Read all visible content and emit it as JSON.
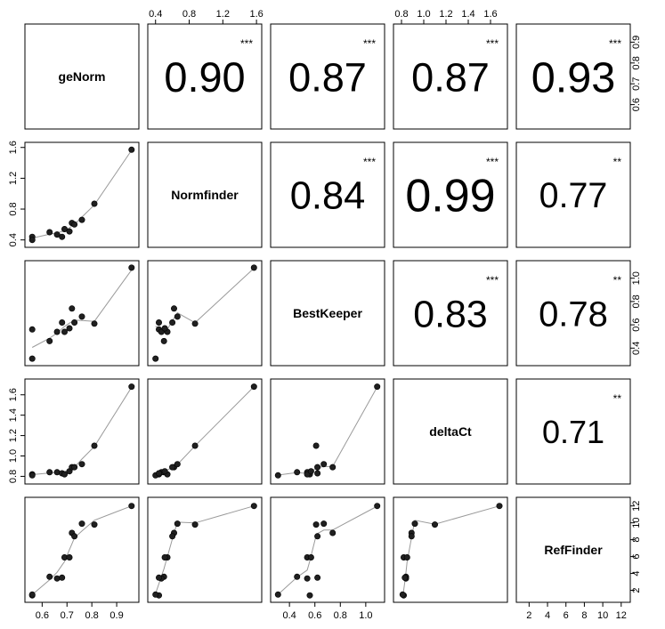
{
  "chart_data": {
    "type": "scatter",
    "variables": [
      "geNorm",
      "Normfinder",
      "BestKeeper",
      "deltaCt",
      "RefFinder"
    ],
    "lower_panels": "scatter with lowess smoother",
    "upper_panels": "correlation coefficient with significance stars",
    "correlations": [
      {
        "row": 0,
        "col": 1,
        "value": "0.90",
        "sig": "***"
      },
      {
        "row": 0,
        "col": 2,
        "value": "0.87",
        "sig": "***"
      },
      {
        "row": 0,
        "col": 3,
        "value": "0.87",
        "sig": "***"
      },
      {
        "row": 0,
        "col": 4,
        "value": "0.93",
        "sig": "***"
      },
      {
        "row": 1,
        "col": 2,
        "value": "0.84",
        "sig": "***"
      },
      {
        "row": 1,
        "col": 3,
        "value": "0.99",
        "sig": "***"
      },
      {
        "row": 1,
        "col": 4,
        "value": "0.77",
        "sig": "**"
      },
      {
        "row": 2,
        "col": 3,
        "value": "0.83",
        "sig": "***"
      },
      {
        "row": 2,
        "col": 4,
        "value": "0.78",
        "sig": "**"
      },
      {
        "row": 3,
        "col": 4,
        "value": "0.71",
        "sig": "**"
      }
    ],
    "observations": {
      "geNorm": [
        0.56,
        0.56,
        0.63,
        0.66,
        0.68,
        0.69,
        0.71,
        0.72,
        0.73,
        0.76,
        0.81,
        0.96
      ],
      "Normfinder": [
        0.44,
        0.4,
        0.5,
        0.47,
        0.44,
        0.54,
        0.51,
        0.62,
        0.6,
        0.66,
        0.87,
        1.57
      ],
      "BestKeeper": [
        0.56,
        0.31,
        0.46,
        0.54,
        0.62,
        0.54,
        0.57,
        0.74,
        0.62,
        0.67,
        0.61,
        1.09
      ],
      "deltaCt": [
        0.82,
        0.81,
        0.84,
        0.84,
        0.83,
        0.82,
        0.85,
        0.89,
        0.89,
        0.92,
        1.1,
        1.68
      ],
      "RefFinder": [
        1.4,
        1.5,
        3.6,
        3.4,
        3.5,
        5.9,
        5.9,
        8.8,
        8.4,
        9.9,
        9.8,
        12.0
      ]
    },
    "axes": {
      "geNorm": {
        "range": [
          0.545,
          0.975
        ],
        "ticks": [
          "0.6",
          "0.7",
          "0.8",
          "0.9"
        ],
        "tick_values": [
          0.6,
          0.7,
          0.8,
          0.9
        ]
      },
      "Normfinder": {
        "range": [
          0.35,
          1.62
        ],
        "ticks": [
          "0.4",
          "0.8",
          "1.2",
          "1.6"
        ],
        "tick_values": [
          0.4,
          0.8,
          1.2,
          1.6
        ]
      },
      "BestKeeper": {
        "range": [
          0.28,
          1.12
        ],
        "ticks": [
          "0.4",
          "0.6",
          "0.8",
          "1.0"
        ],
        "tick_values": [
          0.4,
          0.6,
          0.8,
          1.0
        ]
      },
      "deltaCt": {
        "range": [
          0.76,
          1.72
        ],
        "ticks": [
          "0.8",
          "1.0",
          "1.2",
          "1.4",
          "1.6"
        ],
        "tick_values": [
          0.8,
          1.0,
          1.2,
          1.4,
          1.6
        ]
      },
      "RefFinder": {
        "range": [
          1.0,
          12.6
        ],
        "ticks": [
          "2",
          "4",
          "6",
          "8",
          "10",
          "12"
        ],
        "tick_values": [
          2,
          4,
          6,
          8,
          10,
          12
        ]
      },
      "upper_right": {
        "range": [
          0.5,
          0.97
        ],
        "ticks": [
          "0.6",
          "0.7",
          "0.8",
          "0.9"
        ],
        "tick_values": [
          0.6,
          0.7,
          0.8,
          0.9
        ]
      }
    },
    "grid": false,
    "legend": "none"
  }
}
